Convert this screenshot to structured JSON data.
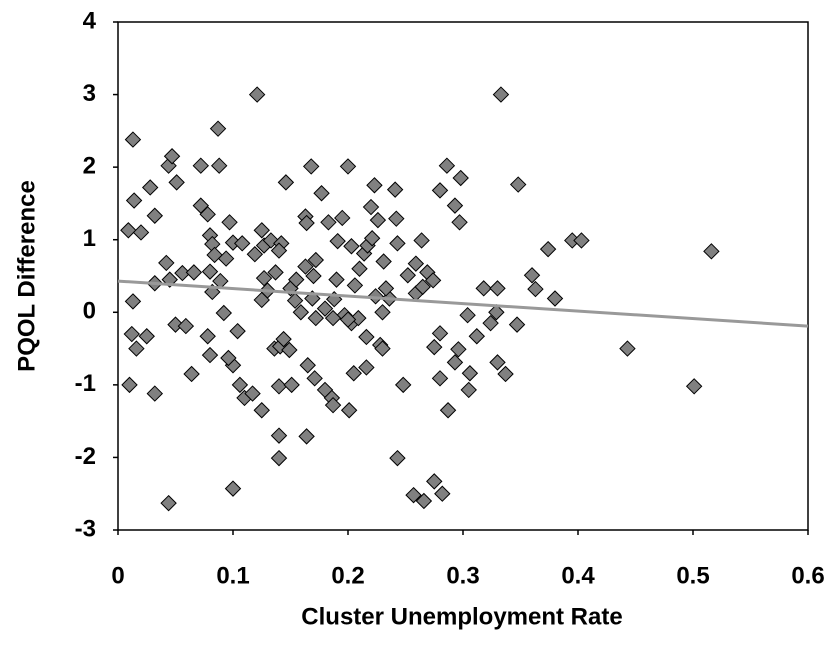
{
  "chart_data": {
    "type": "scatter",
    "x_label": "Cluster Unemployment Rate",
    "y_label": "PQOL Difference",
    "x": [
      0.013,
      0.009,
      0.014,
      0.02,
      0.028,
      0.032,
      0.013,
      0.012,
      0.016,
      0.025,
      0.01,
      0.032,
      0.044,
      0.047,
      0.051,
      0.032,
      0.042,
      0.045,
      0.05,
      0.059,
      0.056,
      0.066,
      0.064,
      0.044,
      0.072,
      0.087,
      0.088,
      0.072,
      0.078,
      0.08,
      0.082,
      0.084,
      0.08,
      0.082,
      0.078,
      0.08,
      0.089,
      0.092,
      0.094,
      0.097,
      0.1,
      0.108,
      0.1,
      0.096,
      0.104,
      0.106,
      0.11,
      0.1,
      0.121,
      0.119,
      0.125,
      0.127,
      0.133,
      0.125,
      0.127,
      0.117,
      0.125,
      0.136,
      0.14,
      0.14,
      0.14,
      0.141,
      0.144,
      0.149,
      0.151,
      0.146,
      0.142,
      0.137,
      0.15,
      0.154,
      0.159,
      0.164,
      0.165,
      0.168,
      0.163,
      0.164,
      0.163,
      0.172,
      0.171,
      0.169,
      0.172,
      0.177,
      0.183,
      0.188,
      0.18,
      0.186,
      0.187,
      0.195,
      0.191,
      0.197,
      0.187,
      0.2,
      0.203,
      0.201,
      0.206,
      0.203,
      0.209,
      0.205,
      0.214,
      0.217,
      0.216,
      0.216,
      0.223,
      0.22,
      0.226,
      0.221,
      0.224,
      0.228,
      0.23,
      0.236,
      0.231,
      0.233,
      0.241,
      0.242,
      0.243,
      0.243,
      0.248,
      0.252,
      0.259,
      0.259,
      0.257,
      0.264,
      0.266,
      0.269,
      0.274,
      0.275,
      0.275,
      0.282,
      0.28,
      0.28,
      0.28,
      0.286,
      0.287,
      0.293,
      0.296,
      0.297,
      0.298,
      0.293,
      0.304,
      0.306,
      0.305,
      0.312,
      0.318,
      0.324,
      0.329,
      0.33,
      0.33,
      0.333,
      0.337,
      0.347,
      0.348,
      0.36,
      0.363,
      0.374,
      0.38,
      0.395,
      0.403,
      0.443,
      0.501,
      0.516,
      0.14,
      0.155,
      0.18,
      0.19,
      0.21,
      0.23,
      0.265,
      0.13,
      0.17,
      0.2
    ],
    "values": [
      2.38,
      1.13,
      1.54,
      1.1,
      1.72,
      1.33,
      0.15,
      -0.3,
      -0.5,
      -0.33,
      -1.0,
      -1.12,
      2.02,
      2.15,
      1.79,
      0.4,
      0.68,
      0.45,
      -0.17,
      -0.19,
      0.54,
      0.55,
      -0.85,
      -2.63,
      2.02,
      2.53,
      2.02,
      1.47,
      1.35,
      1.06,
      0.94,
      0.79,
      0.56,
      0.28,
      -0.33,
      -0.59,
      0.43,
      -0.01,
      0.74,
      1.24,
      0.96,
      0.95,
      -0.73,
      -0.63,
      -0.26,
      -1.0,
      -1.18,
      -2.43,
      3.0,
      0.8,
      1.13,
      0.92,
      0.99,
      0.17,
      0.47,
      -1.12,
      -1.35,
      -0.5,
      -1.7,
      -2.01,
      -1.02,
      -0.47,
      -0.37,
      -0.52,
      -1.0,
      1.79,
      0.95,
      0.55,
      0.33,
      0.16,
      0,
      -1.71,
      -0.73,
      2.01,
      1.32,
      1.23,
      0.63,
      0.72,
      -0.91,
      0.19,
      -0.08,
      1.64,
      1.24,
      0.18,
      -1.07,
      -1.18,
      -1.28,
      1.3,
      0.98,
      -0.04,
      -0.08,
      2.01,
      0.91,
      -1.35,
      0.37,
      -0.15,
      -0.08,
      -0.84,
      0.81,
      0.92,
      -0.34,
      -0.76,
      1.75,
      1.45,
      1.27,
      1.02,
      0.22,
      -0.45,
      -0.5,
      0.19,
      0.7,
      0.33,
      1.69,
      1.29,
      0.95,
      -2.01,
      -1.0,
      0.51,
      0.67,
      0.26,
      -2.52,
      0.99,
      -2.6,
      0.55,
      0.44,
      -0.48,
      -2.33,
      -2.5,
      1.68,
      -0.29,
      -0.91,
      2.02,
      -1.35,
      1.47,
      -0.51,
      1.24,
      1.85,
      -0.69,
      -0.04,
      -0.84,
      -1.07,
      -0.33,
      0.33,
      -0.15,
      0,
      0.33,
      -0.69,
      3.0,
      -0.85,
      -0.17,
      1.76,
      0.51,
      0.32,
      0.87,
      0.19,
      0.99,
      0.99,
      -0.5,
      -1.02,
      0.84,
      0.85,
      0.45,
      0.05,
      0.45,
      0.6,
      0.0,
      0.35,
      0.3,
      0.5,
      -0.1
    ],
    "color": "#808080",
    "trendline": {
      "x": [
        0,
        0.6
      ],
      "values": [
        0.43,
        -0.19
      ],
      "color": "#999999"
    },
    "xlim": [
      0,
      0.6
    ],
    "xticks": [
      0,
      0.1,
      0.2,
      0.3,
      0.4,
      0.5,
      0.6
    ],
    "ylim": [
      -3,
      4
    ],
    "yticks": [
      -3,
      -2,
      -1,
      0,
      1,
      2,
      3,
      4
    ]
  }
}
